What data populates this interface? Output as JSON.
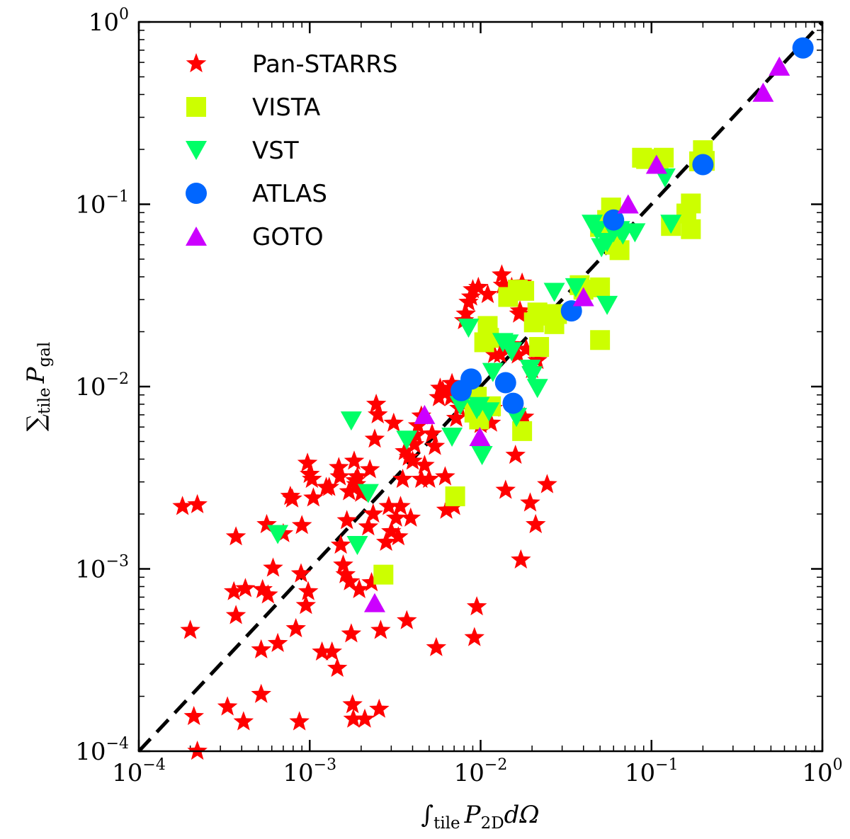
{
  "chart_data": {
    "type": "scatter",
    "xscale": "log",
    "yscale": "log",
    "xlim": [
      0.0001,
      1
    ],
    "ylim": [
      0.0001,
      1
    ],
    "xticks": [
      0.0001,
      0.001,
      0.01,
      0.1,
      1
    ],
    "yticks": [
      0.0001,
      0.001,
      0.01,
      0.1,
      1
    ],
    "tick_base": "10",
    "xtick_exps": [
      "−4",
      "−3",
      "−2",
      "−1",
      "0"
    ],
    "ytick_exps": [
      "−4",
      "−3",
      "−2",
      "−1",
      "0"
    ],
    "xlabel": {
      "integral": "∫",
      "sub1": "tile",
      "var": "P",
      "sub2": "2D",
      "tail": "dΩ"
    },
    "ylabel": {
      "sum": "∑",
      "sub1": "tile",
      "var": "P",
      "sub2": "gal"
    },
    "reference_line": {
      "style": "dashed",
      "color": "#000000",
      "from": [
        0.0001,
        0.0001
      ],
      "to": [
        1,
        1
      ]
    },
    "legend_position": "top-left",
    "series": [
      {
        "name": "Pan-STARRS",
        "marker": "star",
        "color": "#ff0000",
        "points": [
          [
            0.00018,
            0.0022
          ],
          [
            0.00022,
            0.00225
          ],
          [
            0.0002,
            0.00046
          ],
          [
            0.00021,
            0.000155
          ],
          [
            0.00022,
            0.0001
          ],
          [
            0.00033,
            0.000175
          ],
          [
            0.00037,
            0.0015
          ],
          [
            0.00036,
            0.00075
          ],
          [
            0.00037,
            0.000555
          ],
          [
            0.00042,
            0.00078
          ],
          [
            0.00041,
            0.000145
          ],
          [
            0.00052,
            0.000205
          ],
          [
            0.00052,
            0.00036
          ],
          [
            0.00053,
            0.00077
          ],
          [
            0.00056,
            0.00175
          ],
          [
            0.00057,
            0.00072
          ],
          [
            0.00061,
            0.00101
          ],
          [
            0.00065,
            0.00039
          ],
          [
            0.0007,
            0.00156
          ],
          [
            0.00077,
            0.0025
          ],
          [
            0.00079,
            0.00242
          ],
          [
            0.00083,
            0.00047
          ],
          [
            0.00087,
            0.000145
          ],
          [
            0.00089,
            0.00094
          ],
          [
            0.0009,
            0.00173
          ],
          [
            0.00095,
            0.00063
          ],
          [
            0.00097,
            0.0038
          ],
          [
            0.00098,
            0.00075
          ],
          [
            0.001,
            0.0033
          ],
          [
            0.00103,
            0.0031
          ],
          [
            0.00105,
            0.00245
          ],
          [
            0.00118,
            0.00035
          ],
          [
            0.00125,
            0.0028
          ],
          [
            0.0013,
            0.0028
          ],
          [
            0.00135,
            0.00035
          ],
          [
            0.00145,
            0.000285
          ],
          [
            0.00148,
            0.0036
          ],
          [
            0.0015,
            0.0032
          ],
          [
            0.00152,
            0.00135
          ],
          [
            0.00157,
            0.00105
          ],
          [
            0.00162,
            0.00093
          ],
          [
            0.00165,
            0.00184
          ],
          [
            0.0017,
            0.00265
          ],
          [
            0.00172,
            0.00085
          ],
          [
            0.00175,
            0.00044
          ],
          [
            0.00178,
            0.00018
          ],
          [
            0.0018,
            0.00015
          ],
          [
            0.00182,
            0.0039
          ],
          [
            0.00185,
            0.00305
          ],
          [
            0.00187,
            0.0029
          ],
          [
            0.0019,
            0.0032
          ],
          [
            0.00195,
            0.00077
          ],
          [
            0.002,
            0.0026
          ],
          [
            0.0021,
            0.00015
          ],
          [
            0.0022,
            0.0017
          ],
          [
            0.00225,
            0.0035
          ],
          [
            0.0023,
            0.00084
          ],
          [
            0.00235,
            0.002
          ],
          [
            0.0024,
            0.00515
          ],
          [
            0.00245,
            0.008
          ],
          [
            0.0025,
            0.007
          ],
          [
            0.00255,
            0.00017
          ],
          [
            0.0026,
            0.00046
          ],
          [
            0.0028,
            0.0014
          ],
          [
            0.0029,
            0.0022
          ],
          [
            0.003,
            0.0016
          ],
          [
            0.0031,
            0.0063
          ],
          [
            0.0032,
            0.0019
          ],
          [
            0.0033,
            0.0015
          ],
          [
            0.0034,
            0.0022
          ],
          [
            0.0035,
            0.0031
          ],
          [
            0.0036,
            0.0044
          ],
          [
            0.0037,
            0.00052
          ],
          [
            0.0038,
            0.0041
          ],
          [
            0.0039,
            0.0019
          ],
          [
            0.004,
            0.0039
          ],
          [
            0.0041,
            0.0048
          ],
          [
            0.0042,
            0.0054
          ],
          [
            0.0043,
            0.0061
          ],
          [
            0.0045,
            0.0031
          ],
          [
            0.0047,
            0.0037
          ],
          [
            0.005,
            0.0031
          ],
          [
            0.0052,
            0.0055
          ],
          [
            0.0054,
            0.0047
          ],
          [
            0.0055,
            0.00037
          ],
          [
            0.0057,
            0.0087
          ],
          [
            0.0058,
            0.0098
          ],
          [
            0.006,
            0.0095
          ],
          [
            0.0062,
            0.0032
          ],
          [
            0.0063,
            0.0021
          ],
          [
            0.0065,
            0.0095
          ],
          [
            0.0067,
            0.0087
          ],
          [
            0.0068,
            0.0104
          ],
          [
            0.007,
            0.0022
          ],
          [
            0.0072,
            0.0067
          ],
          [
            0.0075,
            0.0076
          ],
          [
            0.008,
            0.023
          ],
          [
            0.0082,
            0.025
          ],
          [
            0.0085,
            0.029
          ],
          [
            0.0088,
            0.031
          ],
          [
            0.009,
            0.034
          ],
          [
            0.0092,
            0.00042
          ],
          [
            0.0095,
            0.00062
          ],
          [
            0.0097,
            0.035
          ],
          [
            0.01,
            0.0062
          ],
          [
            0.0105,
            0.0077
          ],
          [
            0.011,
            0.032
          ],
          [
            0.0115,
            0.0063
          ],
          [
            0.0118,
            0.0076
          ],
          [
            0.012,
            0.015
          ],
          [
            0.0125,
            0.018
          ],
          [
            0.013,
            0.015
          ],
          [
            0.0133,
            0.041
          ],
          [
            0.0135,
            0.036
          ],
          [
            0.014,
            0.0027
          ],
          [
            0.0145,
            0.016
          ],
          [
            0.015,
            0.017
          ],
          [
            0.0152,
            0.035
          ],
          [
            0.016,
            0.0042
          ],
          [
            0.0165,
            0.0149
          ],
          [
            0.0168,
            0.025
          ],
          [
            0.017,
            0.026
          ],
          [
            0.0172,
            0.00112
          ],
          [
            0.0175,
            0.037
          ],
          [
            0.018,
            0.0068
          ],
          [
            0.0185,
            0.016
          ],
          [
            0.0195,
            0.0023
          ],
          [
            0.02,
            0.0124
          ],
          [
            0.021,
            0.00175
          ],
          [
            0.0215,
            0.0139
          ],
          [
            0.0245,
            0.0029
          ],
          [
            0.0045,
            0.0069
          ]
        ]
      },
      {
        "name": "VISTA",
        "marker": "square",
        "color": "#ccff00",
        "points": [
          [
            0.0027,
            0.00093
          ],
          [
            0.0071,
            0.0025
          ],
          [
            0.0092,
            0.0072
          ],
          [
            0.0095,
            0.0088
          ],
          [
            0.0098,
            0.0066
          ],
          [
            0.0105,
            0.0175
          ],
          [
            0.011,
            0.0215
          ],
          [
            0.0112,
            0.0185
          ],
          [
            0.0115,
            0.0078
          ],
          [
            0.0145,
            0.031
          ],
          [
            0.0165,
            0.034
          ],
          [
            0.0175,
            0.0057
          ],
          [
            0.018,
            0.0335
          ],
          [
            0.0205,
            0.0225
          ],
          [
            0.0215,
            0.0255
          ],
          [
            0.022,
            0.0165
          ],
          [
            0.026,
            0.0245
          ],
          [
            0.027,
            0.022
          ],
          [
            0.028,
            0.025
          ],
          [
            0.038,
            0.036
          ],
          [
            0.04,
            0.034
          ],
          [
            0.05,
            0.018
          ],
          [
            0.05,
            0.035
          ],
          [
            0.058,
            0.096
          ],
          [
            0.061,
            0.06
          ],
          [
            0.065,
            0.056
          ],
          [
            0.088,
            0.18
          ],
          [
            0.093,
            0.177
          ],
          [
            0.11,
            0.175
          ],
          [
            0.118,
            0.18
          ],
          [
            0.13,
            0.076
          ],
          [
            0.16,
            0.089
          ],
          [
            0.17,
            0.073
          ],
          [
            0.17,
            0.101
          ],
          [
            0.19,
            0.172
          ],
          [
            0.2,
            0.198
          ],
          [
            0.205,
            0.173
          ],
          [
            0.055,
            0.082
          ],
          [
            0.05,
            0.075
          ]
        ]
      },
      {
        "name": "VST",
        "marker": "triangle-down",
        "color": "#00ff66",
        "points": [
          [
            0.00065,
            0.00155
          ],
          [
            0.00175,
            0.0065
          ],
          [
            0.0019,
            0.00135
          ],
          [
            0.0022,
            0.0026
          ],
          [
            0.0037,
            0.0051
          ],
          [
            0.0068,
            0.0053
          ],
          [
            0.0076,
            0.0079
          ],
          [
            0.0085,
            0.021
          ],
          [
            0.0095,
            0.0075
          ],
          [
            0.0098,
            0.0078
          ],
          [
            0.0102,
            0.0042
          ],
          [
            0.0112,
            0.0073
          ],
          [
            0.0118,
            0.012
          ],
          [
            0.0135,
            0.0175
          ],
          [
            0.0145,
            0.0172
          ],
          [
            0.0152,
            0.0156
          ],
          [
            0.0162,
            0.0068
          ],
          [
            0.0195,
            0.0125
          ],
          [
            0.02,
            0.0115
          ],
          [
            0.0215,
            0.0098
          ],
          [
            0.027,
            0.033
          ],
          [
            0.036,
            0.035
          ],
          [
            0.045,
            0.078
          ],
          [
            0.048,
            0.072
          ],
          [
            0.051,
            0.058
          ],
          [
            0.055,
            0.028
          ],
          [
            0.055,
            0.062
          ],
          [
            0.06,
            0.07
          ],
          [
            0.065,
            0.072
          ],
          [
            0.068,
            0.068
          ],
          [
            0.08,
            0.07
          ],
          [
            0.12,
            0.14
          ],
          [
            0.13,
            0.078
          ]
        ]
      },
      {
        "name": "ATLAS",
        "marker": "circle",
        "color": "#0066ff",
        "points": [
          [
            0.0077,
            0.0095
          ],
          [
            0.0088,
            0.011
          ],
          [
            0.014,
            0.0105
          ],
          [
            0.0155,
            0.0081
          ],
          [
            0.034,
            0.026
          ],
          [
            0.06,
            0.082
          ],
          [
            0.2,
            0.165
          ],
          [
            0.77,
            0.72
          ]
        ]
      },
      {
        "name": "GOTO",
        "marker": "triangle-up",
        "color": "#cc00ff",
        "points": [
          [
            0.0024,
            0.00065
          ],
          [
            0.0047,
            0.007
          ],
          [
            0.0099,
            0.0053
          ],
          [
            0.04,
            0.031
          ],
          [
            0.073,
            0.1
          ],
          [
            0.107,
            0.165
          ],
          [
            0.45,
            0.41
          ],
          [
            0.56,
            0.57
          ]
        ]
      }
    ]
  }
}
